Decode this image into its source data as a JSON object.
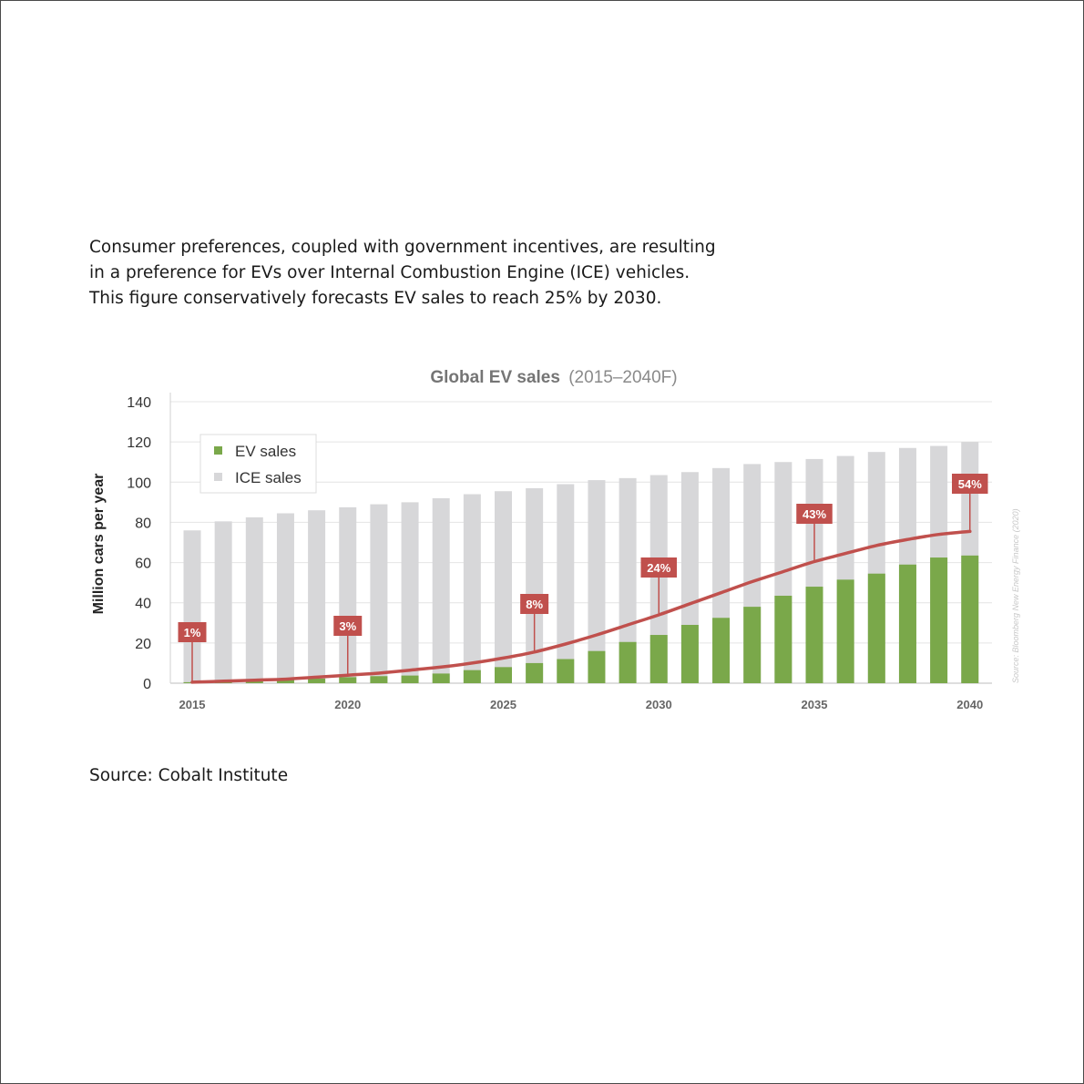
{
  "caption": {
    "lines": [
      "Consumer preferences, coupled with government incentives, are resulting",
      "in a preference for EVs over Internal Combustion Engine (ICE) vehicles.",
      "This figure conservatively forecasts EV sales to reach 25% by 2030."
    ]
  },
  "source": "Source: Cobalt Institute",
  "chart_data": {
    "type": "bar",
    "stacked": false,
    "title": "Global EV sales",
    "subtitle": "(2015–2040F)",
    "xlabel": "",
    "ylabel": "Million cars per year",
    "ylim": [
      0,
      140
    ],
    "yticks": [
      0,
      20,
      40,
      60,
      80,
      100,
      120,
      140
    ],
    "grid": true,
    "legend_position": "top-left",
    "x": [
      2015,
      2016,
      2017,
      2018,
      2019,
      2020,
      2021,
      2022,
      2023,
      2024,
      2025,
      2026,
      2027,
      2028,
      2029,
      2030,
      2031,
      2032,
      2033,
      2034,
      2035,
      2036,
      2037,
      2038,
      2039,
      2040
    ],
    "xtick_labels": [
      "2015",
      "2020",
      "2025",
      "2030",
      "2035",
      "2040"
    ],
    "series": [
      {
        "name": "EV sales",
        "color": "#7aa84a",
        "values": [
          0.5,
          0.8,
          1.2,
          1.8,
          2.3,
          3.0,
          3.5,
          3.8,
          4.8,
          6.5,
          8.0,
          10.0,
          12.0,
          16.0,
          20.5,
          24.0,
          29.0,
          32.5,
          38.0,
          43.5,
          48.0,
          51.5,
          54.5,
          59.0,
          62.5,
          63.5
        ]
      },
      {
        "name": "ICE sales",
        "color": "#d7d7d9",
        "values": [
          76.0,
          80.5,
          82.5,
          84.5,
          86.0,
          87.5,
          89.0,
          90.0,
          92.0,
          94.0,
          95.5,
          97.0,
          99.0,
          101.0,
          102.0,
          103.5,
          105.0,
          107.0,
          109.0,
          110.0,
          111.5,
          113.0,
          115.0,
          117.0,
          118.0,
          120.0
        ]
      }
    ],
    "share_line": {
      "color": "#c0504d",
      "x": [
        2015,
        2016,
        2017,
        2018,
        2019,
        2020,
        2021,
        2022,
        2023,
        2024,
        2025,
        2026,
        2027,
        2028,
        2029,
        2030,
        2031,
        2032,
        2033,
        2034,
        2035,
        2036,
        2037,
        2038,
        2039,
        2040
      ],
      "y": [
        0.5,
        1.0,
        1.5,
        2.0,
        3.0,
        4.0,
        5.0,
        6.5,
        8.0,
        10.0,
        12.5,
        15.5,
        19.5,
        24.0,
        29.0,
        34.0,
        39.5,
        45.0,
        50.5,
        55.5,
        60.5,
        64.5,
        68.5,
        71.5,
        74.0,
        75.5
      ]
    },
    "annotations": [
      {
        "label": "1%",
        "x": 2015
      },
      {
        "label": "3%",
        "x": 2020
      },
      {
        "label": "8%",
        "x": 2026
      },
      {
        "label": "24%",
        "x": 2030
      },
      {
        "label": "43%",
        "x": 2035
      },
      {
        "label": "54%",
        "x": 2040
      }
    ],
    "side_note": "Source: Bloomberg New Energy Finance (2020)"
  }
}
